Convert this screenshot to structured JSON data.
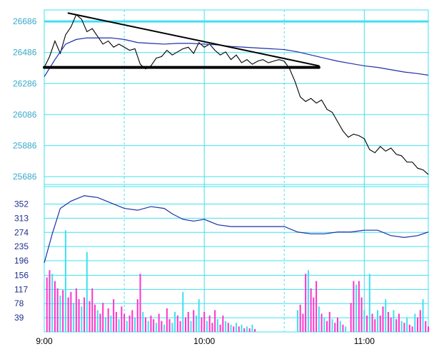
{
  "chart_data": [
    {
      "type": "line",
      "panel": "price",
      "title": "",
      "xlabel": "",
      "ylabel": "",
      "x_ticks": [
        "9:00",
        "10:00",
        "11:00"
      ],
      "y_ticks": [
        26686,
        26486,
        26286,
        26086,
        25886,
        25686
      ],
      "ylim": [
        25640,
        26760
      ],
      "grid": true,
      "colors": {
        "grid": "#40e0f0",
        "price": "#000000",
        "average": "#1f2fa8",
        "annotation": "#000000"
      },
      "series": [
        {
          "role": "price",
          "points": [
            [
              "9:00",
              26390
            ],
            [
              "9:02",
              26460
            ],
            [
              "9:04",
              26560
            ],
            [
              "9:06",
              26480
            ],
            [
              "9:08",
              26600
            ],
            [
              "9:10",
              26650
            ],
            [
              "9:12",
              26730
            ],
            [
              "9:14",
              26700
            ],
            [
              "9:16",
              26620
            ],
            [
              "9:18",
              26640
            ],
            [
              "9:20",
              26590
            ],
            [
              "9:22",
              26540
            ],
            [
              "9:24",
              26560
            ],
            [
              "9:26",
              26520
            ],
            [
              "9:28",
              26540
            ],
            [
              "9:30",
              26520
            ],
            [
              "9:32",
              26500
            ],
            [
              "9:34",
              26510
            ],
            [
              "9:36",
              26410
            ],
            [
              "9:38",
              26380
            ],
            [
              "9:40",
              26400
            ],
            [
              "9:42",
              26450
            ],
            [
              "9:44",
              26460
            ],
            [
              "9:46",
              26500
            ],
            [
              "9:48",
              26470
            ],
            [
              "9:50",
              26490
            ],
            [
              "9:52",
              26510
            ],
            [
              "9:54",
              26520
            ],
            [
              "9:56",
              26480
            ],
            [
              "9:58",
              26550
            ],
            [
              "10:00",
              26520
            ],
            [
              "10:02",
              26540
            ],
            [
              "10:04",
              26500
            ],
            [
              "10:06",
              26470
            ],
            [
              "10:08",
              26490
            ],
            [
              "10:10",
              26440
            ],
            [
              "10:12",
              26470
            ],
            [
              "10:14",
              26420
            ],
            [
              "10:16",
              26440
            ],
            [
              "10:18",
              26410
            ],
            [
              "10:20",
              26430
            ],
            [
              "10:22",
              26440
            ],
            [
              "10:24",
              26420
            ],
            [
              "10:26",
              26430
            ],
            [
              "10:28",
              26440
            ],
            [
              "10:30",
              26430
            ],
            [
              "10:32",
              26380
            ],
            [
              "10:34",
              26300
            ],
            [
              "10:36",
              26200
            ],
            [
              "10:38",
              26170
            ],
            [
              "10:40",
              26190
            ],
            [
              "10:42",
              26160
            ],
            [
              "10:44",
              26180
            ],
            [
              "10:46",
              26120
            ],
            [
              "10:48",
              26100
            ],
            [
              "10:50",
              26040
            ],
            [
              "10:52",
              25980
            ],
            [
              "10:54",
              25940
            ],
            [
              "10:56",
              25960
            ],
            [
              "10:58",
              25950
            ],
            [
              "11:00",
              25930
            ],
            [
              "11:02",
              25860
            ],
            [
              "11:04",
              25840
            ],
            [
              "11:06",
              25880
            ],
            [
              "11:08",
              25850
            ],
            [
              "11:10",
              25870
            ],
            [
              "11:12",
              25830
            ],
            [
              "11:14",
              25820
            ],
            [
              "11:16",
              25780
            ],
            [
              "11:18",
              25780
            ],
            [
              "11:20",
              25740
            ],
            [
              "11:22",
              25730
            ],
            [
              "11:24",
              25700
            ]
          ]
        },
        {
          "role": "average",
          "points": [
            [
              "9:00",
              26330
            ],
            [
              "9:04",
              26440
            ],
            [
              "9:08",
              26540
            ],
            [
              "9:12",
              26570
            ],
            [
              "9:16",
              26580
            ],
            [
              "9:20",
              26580
            ],
            [
              "9:25",
              26580
            ],
            [
              "9:30",
              26570
            ],
            [
              "9:35",
              26550
            ],
            [
              "9:40",
              26545
            ],
            [
              "9:45",
              26540
            ],
            [
              "9:50",
              26545
            ],
            [
              "9:55",
              26545
            ],
            [
              "10:00",
              26540
            ],
            [
              "10:05",
              26535
            ],
            [
              "10:10",
              26525
            ],
            [
              "10:15",
              26520
            ],
            [
              "10:20",
              26515
            ],
            [
              "10:25",
              26510
            ],
            [
              "10:30",
              26505
            ],
            [
              "10:35",
              26490
            ],
            [
              "10:40",
              26470
            ],
            [
              "10:45",
              26450
            ],
            [
              "10:50",
              26430
            ],
            [
              "10:55",
              26415
            ],
            [
              "11:00",
              26400
            ],
            [
              "11:05",
              26390
            ],
            [
              "11:10",
              26375
            ],
            [
              "11:15",
              26360
            ],
            [
              "11:20",
              26350
            ],
            [
              "11:24",
              26340
            ]
          ]
        }
      ],
      "annotations": [
        {
          "kind": "trendline",
          "from": [
            "9:09",
            26740
          ],
          "to": [
            "10:43",
            26400
          ]
        },
        {
          "kind": "support",
          "from": [
            "9:00",
            26390
          ],
          "to": [
            "10:43",
            26390
          ]
        }
      ]
    },
    {
      "type": "bar",
      "panel": "volume",
      "y_ticks": [
        352,
        313,
        274,
        235,
        196,
        156,
        117,
        78,
        39
      ],
      "ylim": [
        0,
        400
      ],
      "colors": {
        "up": "#ff33cc",
        "down": "#40e0f0",
        "line": "#1f2fa8"
      },
      "line": [
        [
          "9:00",
          190
        ],
        [
          "9:03",
          270
        ],
        [
          "9:06",
          340
        ],
        [
          "9:10",
          360
        ],
        [
          "9:15",
          375
        ],
        [
          "9:20",
          370
        ],
        [
          "9:25",
          355
        ],
        [
          "9:30",
          340
        ],
        [
          "9:35",
          335
        ],
        [
          "9:40",
          345
        ],
        [
          "9:45",
          340
        ],
        [
          "9:48",
          325
        ],
        [
          "9:52",
          310
        ],
        [
          "9:56",
          305
        ],
        [
          "10:00",
          310
        ],
        [
          "10:05",
          295
        ],
        [
          "10:10",
          290
        ],
        [
          "10:20",
          290
        ],
        [
          "10:30",
          290
        ],
        [
          "10:35",
          275
        ],
        [
          "10:40",
          270
        ],
        [
          "10:45",
          270
        ],
        [
          "10:50",
          275
        ],
        [
          "10:55",
          275
        ],
        [
          "11:00",
          280
        ],
        [
          "11:05",
          280
        ],
        [
          "11:10",
          265
        ],
        [
          "11:15",
          260
        ],
        [
          "11:20",
          265
        ],
        [
          "11:24",
          275
        ]
      ],
      "bars": [
        [
          "9:01",
          150,
          "up"
        ],
        [
          "9:02",
          170,
          "up"
        ],
        [
          "9:03",
          160,
          "down"
        ],
        [
          "9:04",
          140,
          "up"
        ],
        [
          "9:05",
          120,
          "up"
        ],
        [
          "9:06",
          100,
          "down"
        ],
        [
          "9:07",
          115,
          "up"
        ],
        [
          "9:08",
          280,
          "down"
        ],
        [
          "9:09",
          95,
          "up"
        ],
        [
          "9:10",
          110,
          "up"
        ],
        [
          "9:11",
          80,
          "down"
        ],
        [
          "9:12",
          120,
          "up"
        ],
        [
          "9:13",
          90,
          "up"
        ],
        [
          "9:14",
          70,
          "down"
        ],
        [
          "9:15",
          95,
          "up"
        ],
        [
          "9:16",
          220,
          "down"
        ],
        [
          "9:17",
          85,
          "up"
        ],
        [
          "9:18",
          120,
          "up"
        ],
        [
          "9:19",
          75,
          "up"
        ],
        [
          "9:20",
          60,
          "down"
        ],
        [
          "9:21",
          50,
          "up"
        ],
        [
          "9:22",
          80,
          "up"
        ],
        [
          "9:23",
          40,
          "down"
        ],
        [
          "9:24",
          65,
          "up"
        ],
        [
          "9:25",
          45,
          "down"
        ],
        [
          "9:26",
          90,
          "up"
        ],
        [
          "9:27",
          55,
          "up"
        ],
        [
          "9:28",
          35,
          "down"
        ],
        [
          "9:29",
          70,
          "up"
        ],
        [
          "9:30",
          50,
          "up"
        ],
        [
          "9:31",
          30,
          "down"
        ],
        [
          "9:32",
          45,
          "up"
        ],
        [
          "9:33",
          60,
          "up"
        ],
        [
          "9:34",
          40,
          "down"
        ],
        [
          "9:35",
          90,
          "up"
        ],
        [
          "9:36",
          160,
          "up"
        ],
        [
          "9:37",
          55,
          "down"
        ],
        [
          "9:38",
          40,
          "up"
        ],
        [
          "9:39",
          30,
          "down"
        ],
        [
          "9:40",
          45,
          "up"
        ],
        [
          "9:41",
          35,
          "up"
        ],
        [
          "9:42",
          25,
          "down"
        ],
        [
          "9:43",
          50,
          "up"
        ],
        [
          "9:44",
          30,
          "up"
        ],
        [
          "9:45",
          20,
          "down"
        ],
        [
          "9:46",
          65,
          "up"
        ],
        [
          "9:47",
          35,
          "up"
        ],
        [
          "9:48",
          25,
          "down"
        ],
        [
          "9:49",
          55,
          "down"
        ],
        [
          "9:50",
          45,
          "up"
        ],
        [
          "9:51",
          30,
          "up"
        ],
        [
          "9:52",
          110,
          "down"
        ],
        [
          "9:53",
          40,
          "up"
        ],
        [
          "9:54",
          55,
          "up"
        ],
        [
          "9:55",
          30,
          "down"
        ],
        [
          "9:56",
          60,
          "up"
        ],
        [
          "9:57",
          45,
          "down"
        ],
        [
          "9:58",
          90,
          "down"
        ],
        [
          "9:59",
          40,
          "up"
        ],
        [
          "10:00",
          55,
          "up"
        ],
        [
          "10:01",
          30,
          "down"
        ],
        [
          "10:02",
          45,
          "up"
        ],
        [
          "10:03",
          25,
          "up"
        ],
        [
          "10:04",
          60,
          "up"
        ],
        [
          "10:05",
          35,
          "down"
        ],
        [
          "10:06",
          20,
          "up"
        ],
        [
          "10:07",
          45,
          "up"
        ],
        [
          "10:08",
          30,
          "down"
        ],
        [
          "10:09",
          25,
          "up"
        ],
        [
          "10:10",
          20,
          "down"
        ],
        [
          "10:11",
          15,
          "up"
        ],
        [
          "10:12",
          25,
          "down"
        ],
        [
          "10:13",
          15,
          "up"
        ],
        [
          "10:14",
          20,
          "down"
        ],
        [
          "10:15",
          10,
          "up"
        ],
        [
          "10:16",
          15,
          "down"
        ],
        [
          "10:17",
          10,
          "up"
        ],
        [
          "10:18",
          20,
          "down"
        ],
        [
          "10:19",
          8,
          "up"
        ],
        [
          "10:35",
          60,
          "down"
        ],
        [
          "10:36",
          75,
          "up"
        ],
        [
          "10:37",
          50,
          "up"
        ],
        [
          "10:38",
          160,
          "up"
        ],
        [
          "10:39",
          170,
          "down"
        ],
        [
          "10:40",
          120,
          "up"
        ],
        [
          "10:41",
          95,
          "up"
        ],
        [
          "10:42",
          140,
          "up"
        ],
        [
          "10:43",
          70,
          "down"
        ],
        [
          "10:44",
          50,
          "up"
        ],
        [
          "10:45",
          40,
          "down"
        ],
        [
          "10:46",
          30,
          "up"
        ],
        [
          "10:47",
          55,
          "up"
        ],
        [
          "10:48",
          35,
          "down"
        ],
        [
          "10:49",
          25,
          "up"
        ],
        [
          "10:50",
          40,
          "up"
        ],
        [
          "10:51",
          30,
          "down"
        ],
        [
          "10:52",
          20,
          "up"
        ],
        [
          "10:53",
          15,
          "down"
        ],
        [
          "10:55",
          80,
          "up"
        ],
        [
          "10:56",
          140,
          "up"
        ],
        [
          "10:57",
          130,
          "down"
        ],
        [
          "10:58",
          140,
          "up"
        ],
        [
          "10:59",
          95,
          "up"
        ],
        [
          "11:00",
          60,
          "down"
        ],
        [
          "11:01",
          45,
          "up"
        ],
        [
          "11:02",
          160,
          "down"
        ],
        [
          "11:03",
          50,
          "up"
        ],
        [
          "11:04",
          35,
          "up"
        ],
        [
          "11:05",
          60,
          "down"
        ],
        [
          "11:06",
          45,
          "up"
        ],
        [
          "11:07",
          70,
          "up"
        ],
        [
          "11:08",
          90,
          "down"
        ],
        [
          "11:09",
          55,
          "up"
        ],
        [
          "11:10",
          40,
          "up"
        ],
        [
          "11:11",
          60,
          "down"
        ],
        [
          "11:12",
          35,
          "up"
        ],
        [
          "11:13",
          50,
          "up"
        ],
        [
          "11:14",
          30,
          "down"
        ],
        [
          "11:15",
          25,
          "up"
        ],
        [
          "11:16",
          40,
          "down"
        ],
        [
          "11:17",
          20,
          "up"
        ],
        [
          "11:18",
          15,
          "up"
        ],
        [
          "11:19",
          50,
          "down"
        ],
        [
          "11:20",
          40,
          "up"
        ],
        [
          "11:21",
          60,
          "up"
        ],
        [
          "11:22",
          90,
          "down"
        ],
        [
          "11:23",
          30,
          "up"
        ],
        [
          "11:24",
          15,
          "up"
        ]
      ]
    }
  ]
}
